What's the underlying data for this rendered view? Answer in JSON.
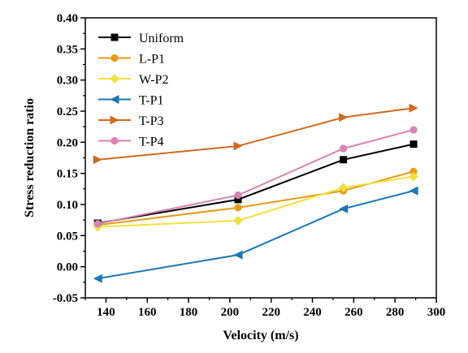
{
  "chart_data": {
    "type": "line",
    "xlabel": "Velocity (m/s)",
    "ylabel": "Stress reduction ratio",
    "xlim": [
      130,
      300
    ],
    "ylim": [
      -0.05,
      0.4
    ],
    "xticks": [
      140,
      160,
      180,
      200,
      220,
      240,
      260,
      280,
      300
    ],
    "yticks": [
      -0.05,
      0.0,
      0.05,
      0.1,
      0.15,
      0.2,
      0.25,
      0.3,
      0.35,
      0.4
    ],
    "xtick_labels": [
      "140",
      "160",
      "180",
      "200",
      "220",
      "240",
      "260",
      "280",
      "300"
    ],
    "ytick_labels": [
      "-0.05",
      "0.00",
      "0.05",
      "0.10",
      "0.15",
      "0.20",
      "0.25",
      "0.30",
      "0.35",
      "0.40"
    ],
    "grid": false,
    "legend_position": "top-left",
    "series": [
      {
        "name": "Uniform",
        "color": "#000000",
        "marker": "square",
        "x": [
          136,
          204,
          255,
          289
        ],
        "y": [
          0.07,
          0.108,
          0.172,
          0.197
        ]
      },
      {
        "name": "L-P1",
        "color": "#e69b17",
        "marker": "circle",
        "x": [
          136,
          204,
          255,
          289
        ],
        "y": [
          0.067,
          0.095,
          0.122,
          0.153
        ]
      },
      {
        "name": "W-P2",
        "color": "#f2e03a",
        "marker": "diamond",
        "x": [
          136,
          204,
          255,
          289
        ],
        "y": [
          0.064,
          0.074,
          0.127,
          0.145
        ]
      },
      {
        "name": "T-P1",
        "color": "#1a78b4",
        "marker": "triangle-left",
        "x": [
          136,
          204,
          255,
          289
        ],
        "y": [
          -0.019,
          0.019,
          0.093,
          0.122
        ]
      },
      {
        "name": "T-P3",
        "color": "#d2691e",
        "marker": "triangle-right",
        "x": [
          136,
          204,
          255,
          289
        ],
        "y": [
          0.172,
          0.194,
          0.24,
          0.255
        ]
      },
      {
        "name": "T-P4",
        "color": "#d982b5",
        "marker": "circle",
        "x": [
          136,
          204,
          255,
          289
        ],
        "y": [
          0.069,
          0.115,
          0.19,
          0.22
        ]
      }
    ]
  }
}
